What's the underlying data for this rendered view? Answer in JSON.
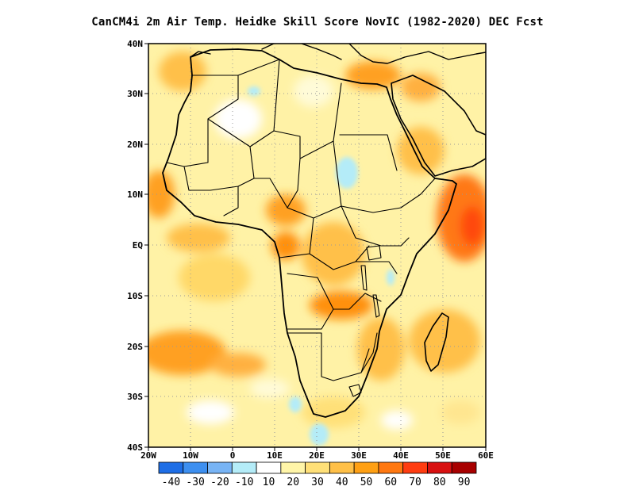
{
  "title": "CanCM4i  2m Air Temp. Heidke Skill Score NovIC (1982-2020) DEC Fcst",
  "map": {
    "lon_range": [
      -20,
      60
    ],
    "lat_range": [
      -40,
      40
    ],
    "x_ticks": [
      "20W",
      "10W",
      "0",
      "10E",
      "20E",
      "30E",
      "40E",
      "50E",
      "60E"
    ],
    "y_ticks": [
      "40N",
      "30N",
      "20N",
      "10N",
      "EQ",
      "10S",
      "20S",
      "30S",
      "40S"
    ],
    "grid": true,
    "region": "Africa"
  },
  "colorbar": {
    "labels": [
      "-40",
      "-30",
      "-20",
      "-10",
      "10",
      "20",
      "30",
      "40",
      "50",
      "60",
      "70",
      "80",
      "90"
    ],
    "colors": [
      "#1e6ee6",
      "#3d8ff0",
      "#78b4f5",
      "#b4ecf8",
      "#ffffff",
      "#fff5a8",
      "#ffe078",
      "#ffc048",
      "#ffa014",
      "#ff7810",
      "#ff3c10",
      "#d81010",
      "#a80000"
    ]
  }
}
